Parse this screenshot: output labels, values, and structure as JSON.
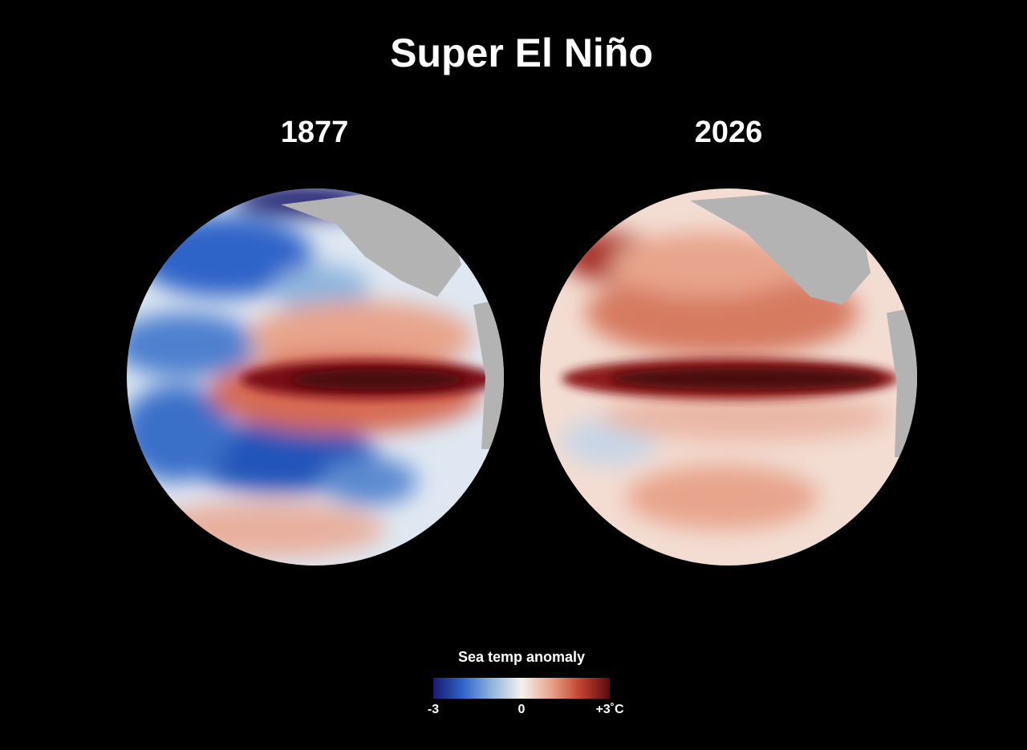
{
  "title": "Super El Niño",
  "maps": [
    {
      "label": "1877"
    },
    {
      "label": "2026"
    }
  ],
  "legend": {
    "title": "Sea temp anomaly",
    "range": [
      -3,
      3
    ],
    "colors": [
      "#1a1a6e",
      "#2f63c8",
      "#8fb5de",
      "#f4f1ee",
      "#e8a48c",
      "#c0432e",
      "#5a0a10"
    ],
    "ticks": [
      -3,
      0,
      {
        "value": 3,
        "label": "+3˚C"
      }
    ]
  }
}
